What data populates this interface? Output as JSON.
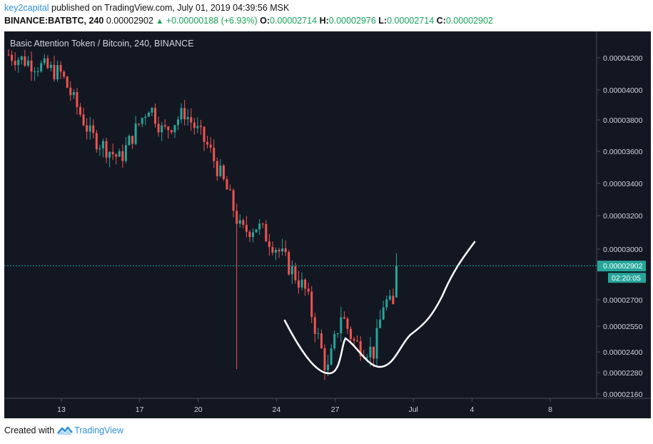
{
  "header": {
    "publisher": "key2capital",
    "published_text": "published on TradingView.com, July 01, 2019 04:39:56 MSK",
    "symbol": "BINANCE:BATBTC, 240",
    "last_price": "0.00002902",
    "change": "+0.00000188 (+6.93%)",
    "o_label": "O:",
    "o_value": "0.00002714",
    "h_label": "H:",
    "h_value": "0.00002976",
    "l_label": "L:",
    "l_value": "0.00002714",
    "c_label": "C:",
    "c_value": "0.00002902"
  },
  "footer": {
    "created_with": "Created with",
    "brand": "TradingView"
  },
  "colors": {
    "background": "#131722",
    "up": "#26a69a",
    "down": "#ef5350",
    "price_line": "#26a69a",
    "pattern": "#ffffff"
  },
  "chart_data": {
    "type": "candlestick",
    "title": "Basic Attention Token / Bitcoin, 240, BINANCE",
    "y_axis_labels": [
      "0.00004200",
      "0.00004000",
      "0.00003800",
      "0.00003600",
      "0.00003400",
      "0.00003200",
      "0.00003000",
      "0.00002700",
      "0.00002550",
      "0.00002400",
      "0.00002280",
      "0.00002160"
    ],
    "x_axis_labels": [
      "13",
      "17",
      "20",
      "24",
      "27",
      "Jul",
      "4",
      "8"
    ],
    "last_price_label": "0.00002902",
    "countdown_label": "02:20:05",
    "x_range_days": [
      10.2,
      40.2
    ],
    "last_price": 2.902e-05,
    "candles_ohlc_key_points": [
      {
        "day": 10.3,
        "close": 4.22e-05
      },
      {
        "day": 13.0,
        "close": 4.1e-05
      },
      {
        "day": 14.5,
        "close": 3.7e-05
      },
      {
        "day": 16.0,
        "close": 3.55e-05
      },
      {
        "day": 17.5,
        "close": 3.9e-05
      },
      {
        "day": 18.2,
        "close": 3.72e-05
      },
      {
        "day": 19.3,
        "close": 3.85e-05
      },
      {
        "day": 20.5,
        "close": 3.63e-05
      },
      {
        "day": 21.5,
        "close": 3.35e-05
      },
      {
        "day": 22.2,
        "close": 3.1e-05
      },
      {
        "day": 23.0,
        "close": 3.14e-05
      },
      {
        "day": 24.0,
        "close": 3.01e-05
      },
      {
        "day": 25.5,
        "close": 2.75e-05
      },
      {
        "day": 26.6,
        "close": 2.28e-05
      },
      {
        "day": 27.3,
        "close": 2.62e-05
      },
      {
        "day": 28.0,
        "close": 2.45e-05
      },
      {
        "day": 29.0,
        "close": 2.4e-05
      },
      {
        "day": 29.5,
        "close": 2.7e-05
      },
      {
        "day": 30.0,
        "close": 2.65e-05
      },
      {
        "day": 30.2,
        "close": 2.9e-05
      }
    ],
    "pattern_annotation": "hand-drawn cup and handle curve"
  }
}
